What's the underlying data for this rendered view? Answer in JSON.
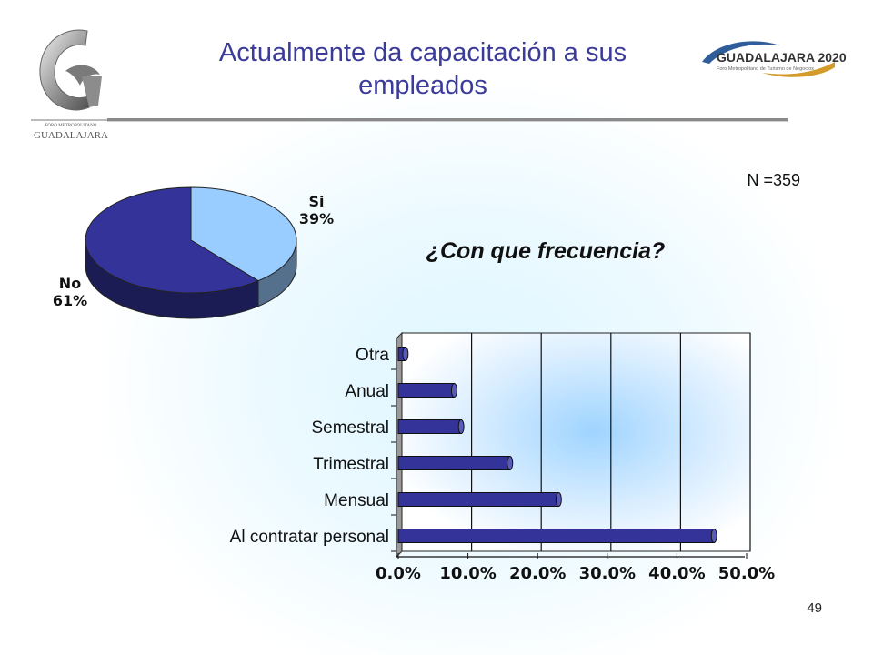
{
  "title_line1": "Actualmente da capacitación a sus",
  "title_line2": "empleados",
  "subtitle": "¿Con que frecuencia?",
  "n_label": "N =359",
  "page_number": "49",
  "logo_left_text": "GUADALAJARA",
  "logo_left_small": "FORO METROPOLITANO",
  "logo_right_text": "GUADALAJARA 2020",
  "logo_right_small": "Foro Metropolitano de Turismo de Negocios",
  "colors": {
    "title": "#3b3b9a",
    "bar": "#333399",
    "pie_si": "#99ccff",
    "pie_no": "#333399"
  },
  "chart_data": [
    {
      "type": "pie",
      "slices": [
        {
          "label": "Si",
          "percent_label": "39%",
          "value": 39,
          "color": "#99ccff"
        },
        {
          "label": "No",
          "percent_label": "61%",
          "value": 61,
          "color": "#333399"
        }
      ]
    },
    {
      "type": "bar",
      "orientation": "horizontal",
      "categories": [
        "Otra",
        "Anual",
        "Semestral",
        "Trimestral",
        "Mensual",
        "Al contratar personal"
      ],
      "values": [
        0.5,
        7.5,
        8.5,
        15.5,
        22.5,
        44.8
      ],
      "xlim": [
        0,
        50
      ],
      "xticks": [
        "0.0%",
        "10.0%",
        "20.0%",
        "30.0%",
        "40.0%",
        "50.0%"
      ],
      "grid": true
    }
  ]
}
